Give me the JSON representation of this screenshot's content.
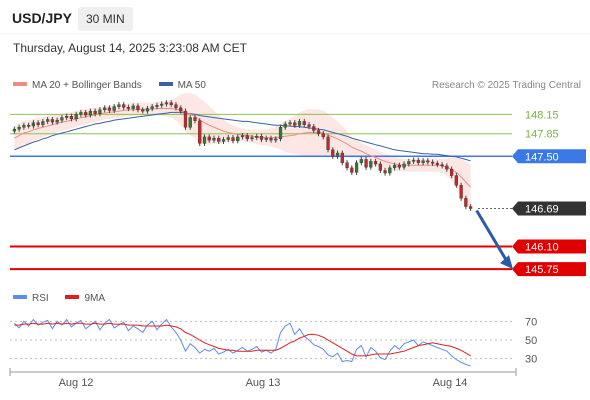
{
  "header": {
    "symbol": "USD/JPY",
    "timeframe": "30 MIN"
  },
  "timestamp": "Thursday, August 14, 2025 3:23:08 AM CET",
  "credit": "Research © 2025 Trading Central",
  "legend_top": [
    {
      "label": "MA 20 + Bollinger Bands",
      "color": "#f28b82"
    },
    {
      "label": "MA 50",
      "color": "#3c5fa8"
    }
  ],
  "legend_bottom": [
    {
      "label": "RSI",
      "color": "#5b8def"
    },
    {
      "label": "9MA",
      "color": "#e02020"
    }
  ],
  "colors": {
    "up": "#2e7d32",
    "down": "#c62828",
    "support": "#e00000",
    "resistance": "#8bc34a",
    "pivot": "#3b78e7",
    "current": "#333333",
    "arrow": "#2a5ba8",
    "ma20": "#f28b82",
    "ma50": "#3c5fa8"
  },
  "chart_data": [
    {
      "type": "candlestick",
      "title": "USD/JPY",
      "ylim": [
        145.55,
        148.45
      ],
      "x_ticks": [
        "Aug 12",
        "Aug 13",
        "Aug 14"
      ],
      "levels": [
        {
          "value": 148.15,
          "label": "148.15",
          "kind": "resistance"
        },
        {
          "value": 147.85,
          "label": "147.85",
          "kind": "resistance"
        },
        {
          "value": 147.5,
          "label": "147.50",
          "kind": "pivot"
        },
        {
          "value": 146.69,
          "label": "146.69",
          "kind": "current"
        },
        {
          "value": 146.1,
          "label": "146.10",
          "kind": "support"
        },
        {
          "value": 145.75,
          "label": "145.75",
          "kind": "support"
        }
      ],
      "closes": [
        147.92,
        147.95,
        147.98,
        147.97,
        148.02,
        147.99,
        148.04,
        148.07,
        148.03,
        148.06,
        148.1,
        148.12,
        148.08,
        148.15,
        148.18,
        148.14,
        148.2,
        148.16,
        148.22,
        148.25,
        148.21,
        148.27,
        148.3,
        148.26,
        148.24,
        148.28,
        148.22,
        148.2,
        148.24,
        148.27,
        148.29,
        148.31,
        148.33,
        148.3,
        148.25,
        148.2,
        147.95,
        148.1,
        148.05,
        147.7,
        147.8,
        147.75,
        147.78,
        147.73,
        147.76,
        147.79,
        147.74,
        147.8,
        147.82,
        147.77,
        147.79,
        147.81,
        147.76,
        147.78,
        147.75,
        147.77,
        147.95,
        148.0,
        148.02,
        147.98,
        148.04,
        147.99,
        147.96,
        147.9,
        147.85,
        147.8,
        147.6,
        147.5,
        147.55,
        147.4,
        147.32,
        147.25,
        147.4,
        147.45,
        147.33,
        147.42,
        147.38,
        147.28,
        147.24,
        147.32,
        147.36,
        147.33,
        147.38,
        147.42,
        147.44,
        147.4,
        147.43,
        147.41,
        147.39,
        147.37,
        147.35,
        147.3,
        147.2,
        147.05,
        146.85,
        146.72,
        146.69
      ],
      "ma20": [
        147.78,
        147.82,
        147.86,
        147.88,
        147.91,
        147.93,
        147.95,
        147.97,
        147.99,
        148.01,
        148.03,
        148.04,
        148.06,
        148.08,
        148.1,
        148.11,
        148.13,
        148.14,
        148.16,
        148.17,
        148.18,
        148.19,
        148.2,
        148.21,
        148.22,
        148.22,
        148.23,
        148.23,
        148.23,
        148.23,
        148.24,
        148.24,
        148.24,
        148.24,
        148.23,
        148.22,
        148.18,
        148.15,
        148.12,
        148.06,
        148.02,
        147.98,
        147.95,
        147.92,
        147.89,
        147.87,
        147.85,
        147.84,
        147.83,
        147.82,
        147.81,
        147.8,
        147.79,
        147.79,
        147.79,
        147.79,
        147.8,
        147.81,
        147.82,
        147.83,
        147.85,
        147.86,
        147.87,
        147.87,
        147.87,
        147.86,
        147.83,
        147.8,
        147.77,
        147.73,
        147.69,
        147.64,
        147.61,
        147.58,
        147.54,
        147.51,
        147.48,
        147.45,
        147.42,
        147.4,
        147.38,
        147.37,
        147.36,
        147.36,
        147.36,
        147.36,
        147.36,
        147.36,
        147.36,
        147.36,
        147.35,
        147.33,
        147.3,
        147.25,
        147.18,
        147.1,
        147.02
      ],
      "ma50": [
        147.6,
        147.63,
        147.66,
        147.69,
        147.72,
        147.74,
        147.77,
        147.79,
        147.82,
        147.84,
        147.86,
        147.88,
        147.9,
        147.92,
        147.94,
        147.96,
        147.98,
        148.0,
        148.01,
        148.03,
        148.04,
        148.06,
        148.07,
        148.08,
        148.09,
        148.1,
        148.11,
        148.12,
        148.13,
        148.14,
        148.15,
        148.16,
        148.17,
        148.18,
        148.18,
        148.18,
        148.17,
        148.16,
        148.15,
        148.13,
        148.12,
        148.11,
        148.1,
        148.09,
        148.08,
        148.07,
        148.06,
        148.05,
        148.04,
        148.04,
        148.03,
        148.02,
        148.01,
        148.0,
        147.99,
        147.98,
        147.98,
        147.97,
        147.97,
        147.96,
        147.96,
        147.95,
        147.94,
        147.93,
        147.92,
        147.91,
        147.89,
        147.87,
        147.85,
        147.83,
        147.81,
        147.78,
        147.76,
        147.74,
        147.72,
        147.7,
        147.68,
        147.66,
        147.64,
        147.62,
        147.6,
        147.59,
        147.58,
        147.57,
        147.56,
        147.55,
        147.54,
        147.54,
        147.53,
        147.53,
        147.52,
        147.51,
        147.5,
        147.49,
        147.47,
        147.45,
        147.43
      ],
      "bb_width": [
        0.18,
        0.19,
        0.19,
        0.18,
        0.17,
        0.16,
        0.16,
        0.15,
        0.15,
        0.14,
        0.14,
        0.13,
        0.13,
        0.12,
        0.12,
        0.12,
        0.11,
        0.11,
        0.11,
        0.1,
        0.1,
        0.1,
        0.1,
        0.1,
        0.1,
        0.1,
        0.1,
        0.1,
        0.1,
        0.1,
        0.11,
        0.11,
        0.12,
        0.14,
        0.18,
        0.24,
        0.3,
        0.33,
        0.34,
        0.34,
        0.33,
        0.3,
        0.26,
        0.22,
        0.18,
        0.15,
        0.13,
        0.11,
        0.1,
        0.1,
        0.1,
        0.11,
        0.12,
        0.13,
        0.14,
        0.16,
        0.2,
        0.24,
        0.27,
        0.3,
        0.33,
        0.35,
        0.36,
        0.36,
        0.36,
        0.35,
        0.33,
        0.3,
        0.27,
        0.24,
        0.2,
        0.16,
        0.14,
        0.13,
        0.13,
        0.13,
        0.12,
        0.12,
        0.12,
        0.12,
        0.11,
        0.1,
        0.1,
        0.1,
        0.1,
        0.1,
        0.1,
        0.1,
        0.1,
        0.1,
        0.11,
        0.14,
        0.18,
        0.23,
        0.28,
        0.32,
        0.35
      ]
    },
    {
      "type": "line",
      "title": "RSI",
      "ylim": [
        20,
        80
      ],
      "y_ticks": [
        "70",
        "50",
        "30"
      ],
      "series": [
        {
          "name": "RSI",
          "values": [
            68,
            63,
            70,
            65,
            72,
            66,
            69,
            71,
            62,
            70,
            66,
            72,
            64,
            68,
            71,
            62,
            66,
            70,
            61,
            68,
            72,
            63,
            66,
            69,
            60,
            65,
            62,
            58,
            66,
            70,
            61,
            67,
            72,
            64,
            58,
            50,
            38,
            46,
            42,
            36,
            40,
            38,
            41,
            35,
            37,
            40,
            36,
            39,
            42,
            38,
            40,
            43,
            37,
            39,
            36,
            40,
            58,
            65,
            68,
            56,
            62,
            54,
            50,
            45,
            43,
            40,
            34,
            32,
            36,
            27,
            28,
            27,
            40,
            44,
            32,
            42,
            38,
            31,
            29,
            38,
            44,
            40,
            46,
            48,
            50,
            44,
            48,
            46,
            44,
            42,
            40,
            38,
            33,
            29,
            26,
            24,
            22
          ]
        },
        {
          "name": "9MA",
          "values": [
            66,
            66,
            67,
            67,
            68,
            67,
            67,
            68,
            67,
            68,
            67,
            68,
            67,
            68,
            68,
            67,
            67,
            68,
            67,
            67,
            68,
            67,
            67,
            67,
            66,
            66,
            66,
            65,
            65,
            65,
            65,
            65,
            66,
            65,
            64,
            62,
            58,
            56,
            53,
            50,
            47,
            45,
            43,
            41,
            40,
            39,
            39,
            38,
            38,
            38,
            38,
            39,
            39,
            39,
            39,
            39,
            41,
            44,
            47,
            49,
            52,
            54,
            56,
            56,
            55,
            53,
            50,
            47,
            44,
            41,
            38,
            35,
            33,
            33,
            33,
            34,
            35,
            35,
            35,
            35,
            36,
            37,
            38,
            40,
            42,
            44,
            45,
            46,
            47,
            46,
            45,
            44,
            43,
            41,
            39,
            36,
            33
          ]
        }
      ]
    }
  ]
}
